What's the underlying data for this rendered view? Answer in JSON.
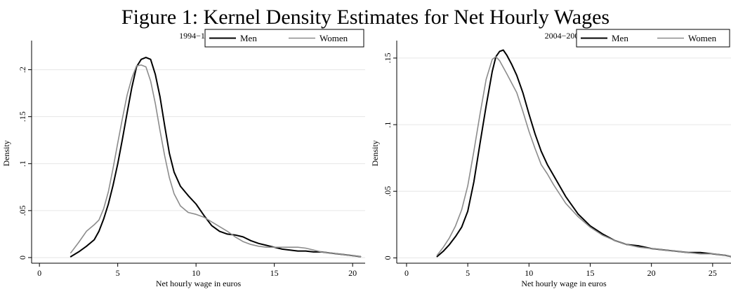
{
  "figure": {
    "title": "Figure 1: Kernel Density Estimates for Net Hourly Wages"
  },
  "colors": {
    "men": "#000000",
    "women": "#8c8c8c",
    "grid": "#e6e6e6"
  },
  "chart_data": [
    {
      "type": "line",
      "title": "1994−1996",
      "xlabel": "Net hourly wage in euros",
      "ylabel": "Density",
      "xlim": [
        -0.5,
        20.8
      ],
      "ylim": [
        -0.006,
        0.228
      ],
      "xticks": [
        0,
        5,
        10,
        15,
        20
      ],
      "xtick_labels": [
        "0",
        "5",
        "10",
        "15",
        "20"
      ],
      "yticks": [
        0,
        0.05,
        0.1,
        0.15,
        0.2
      ],
      "ytick_labels": [
        "0",
        ".05",
        ".1",
        ".15",
        ".2"
      ],
      "grid": true,
      "legend_position": "top-right",
      "series": [
        {
          "name": "Men",
          "x": [
            2,
            2.5,
            3,
            3.5,
            3.8,
            4.1,
            4.4,
            4.7,
            5,
            5.3,
            5.6,
            5.9,
            6.2,
            6.5,
            6.8,
            7.1,
            7.4,
            7.7,
            8.0,
            8.3,
            8.6,
            9.0,
            9.5,
            10.0,
            10.5,
            11.0,
            11.5,
            12.0,
            12.5,
            13.0,
            13.5,
            14.0,
            14.5,
            15.0,
            15.5,
            16.0,
            16.5,
            17.0,
            17.5,
            18.0,
            18.5,
            19.0,
            19.5,
            20.0,
            20.5
          ],
          "y": [
            0.001,
            0.006,
            0.012,
            0.019,
            0.028,
            0.041,
            0.057,
            0.077,
            0.1,
            0.126,
            0.154,
            0.181,
            0.203,
            0.211,
            0.213,
            0.211,
            0.195,
            0.171,
            0.14,
            0.111,
            0.091,
            0.076,
            0.066,
            0.057,
            0.045,
            0.034,
            0.028,
            0.025,
            0.024,
            0.022,
            0.018,
            0.015,
            0.013,
            0.011,
            0.009,
            0.008,
            0.007,
            0.007,
            0.006,
            0.006,
            0.005,
            0.004,
            0.003,
            0.002,
            0.001
          ]
        },
        {
          "name": "Women",
          "x": [
            2,
            2.5,
            3,
            3.5,
            3.8,
            4.1,
            4.4,
            4.7,
            5,
            5.3,
            5.6,
            5.9,
            6.2,
            6.5,
            6.8,
            7.1,
            7.4,
            7.7,
            8.0,
            8.3,
            8.6,
            9.0,
            9.5,
            10.0,
            10.5,
            11.0,
            11.5,
            12.0,
            12.5,
            13.0,
            13.5,
            14.0,
            14.5,
            15.0,
            15.5,
            16.0,
            16.5,
            17.0,
            17.5,
            18.0,
            18.5,
            19.0,
            19.5,
            20.0,
            20.5
          ],
          "y": [
            0.005,
            0.016,
            0.028,
            0.035,
            0.04,
            0.052,
            0.07,
            0.095,
            0.122,
            0.148,
            0.173,
            0.191,
            0.204,
            0.205,
            0.203,
            0.188,
            0.164,
            0.135,
            0.108,
            0.085,
            0.068,
            0.055,
            0.048,
            0.046,
            0.043,
            0.038,
            0.033,
            0.028,
            0.022,
            0.017,
            0.014,
            0.012,
            0.011,
            0.011,
            0.011,
            0.011,
            0.011,
            0.01,
            0.008,
            0.006,
            0.005,
            0.004,
            0.003,
            0.002,
            0.001
          ]
        }
      ]
    },
    {
      "type": "line",
      "title": "2004−2006",
      "xlabel": "Net hourly wage in euros",
      "ylabel": "Density",
      "xlim": [
        -0.8,
        26.5
      ],
      "ylim": [
        -0.004,
        0.161
      ],
      "xticks": [
        0,
        5,
        10,
        15,
        20,
        25
      ],
      "xtick_labels": [
        "0",
        "5",
        "10",
        "15",
        "20",
        "25"
      ],
      "yticks": [
        0,
        0.05,
        0.1,
        0.15
      ],
      "ytick_labels": [
        "0",
        ".05",
        ".1",
        ".15"
      ],
      "grid": true,
      "legend_position": "top-right",
      "series": [
        {
          "name": "Men",
          "x": [
            2.5,
            3,
            3.5,
            4,
            4.5,
            5,
            5.5,
            6,
            6.5,
            7,
            7.3,
            7.6,
            7.9,
            8.2,
            8.6,
            9,
            9.5,
            10,
            10.5,
            11,
            11.5,
            12,
            13,
            14,
            15,
            16,
            17,
            18,
            19,
            20,
            21,
            22,
            23,
            24,
            25,
            26,
            26.5
          ],
          "y": [
            0.001,
            0.005,
            0.01,
            0.016,
            0.023,
            0.035,
            0.057,
            0.086,
            0.114,
            0.14,
            0.151,
            0.155,
            0.156,
            0.152,
            0.145,
            0.137,
            0.124,
            0.108,
            0.093,
            0.08,
            0.07,
            0.062,
            0.046,
            0.033,
            0.024,
            0.018,
            0.013,
            0.01,
            0.009,
            0.007,
            0.006,
            0.005,
            0.004,
            0.004,
            0.003,
            0.002,
            0.001
          ]
        },
        {
          "name": "Women",
          "x": [
            2.5,
            3,
            3.5,
            4,
            4.5,
            5,
            5.5,
            6,
            6.5,
            7,
            7.3,
            7.6,
            7.9,
            8.2,
            8.6,
            9,
            9.5,
            10,
            10.5,
            11,
            11.5,
            12,
            13,
            14,
            15,
            16,
            17,
            18,
            19,
            20,
            21,
            22,
            23,
            24,
            25,
            26,
            26.5
          ],
          "y": [
            0.002,
            0.008,
            0.015,
            0.024,
            0.036,
            0.054,
            0.08,
            0.108,
            0.134,
            0.149,
            0.151,
            0.148,
            0.143,
            0.138,
            0.131,
            0.124,
            0.11,
            0.095,
            0.082,
            0.07,
            0.063,
            0.055,
            0.041,
            0.031,
            0.023,
            0.017,
            0.013,
            0.01,
            0.008,
            0.007,
            0.006,
            0.005,
            0.004,
            0.003,
            0.003,
            0.002,
            0.001
          ]
        }
      ]
    }
  ]
}
